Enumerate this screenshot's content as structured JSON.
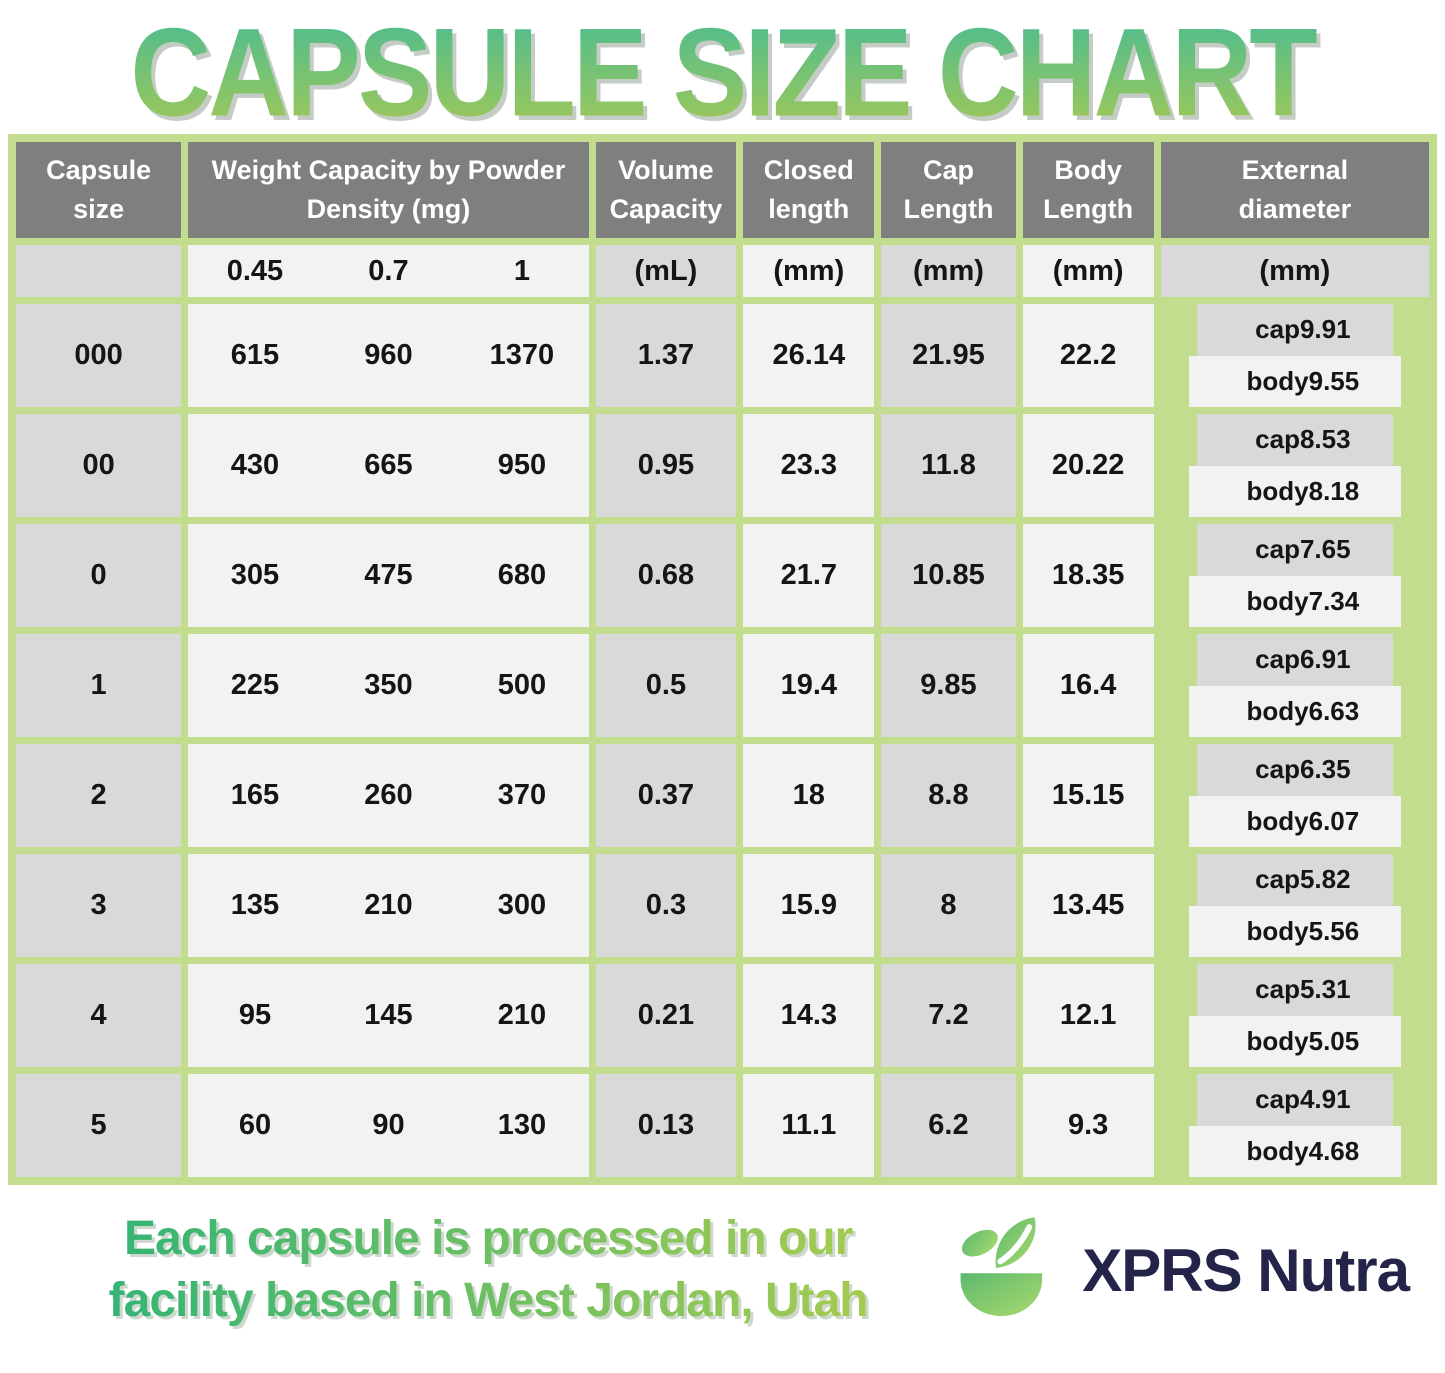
{
  "title": "CAPSULE SIZE CHART",
  "header": {
    "capsule_size": "Capsule size",
    "weight_capacity": "Weight Capacity by Powder Density (mg)",
    "volume_capacity": "Volume Capacity",
    "closed_length": "Closed length",
    "cap_length": "Cap Length",
    "body_length": "Body Length",
    "external_diameter": "External diameter",
    "density_values": [
      "0.45",
      "0.7",
      "1"
    ],
    "units": {
      "volume": "(mL)",
      "closed": "(mm)",
      "cap": "(mm)",
      "body": "(mm)",
      "external": "(mm)"
    },
    "ext_row_labels": {
      "cap": "cap",
      "body": "body"
    }
  },
  "chart_data": {
    "type": "table",
    "title": "CAPSULE SIZE CHART",
    "columns": [
      "Capsule size",
      "Weight Capacity at Powder Density 0.45 (mg)",
      "Weight Capacity at Powder Density 0.7 (mg)",
      "Weight Capacity at Powder Density 1 (mg)",
      "Volume Capacity (mL)",
      "Closed length (mm)",
      "Cap Length (mm)",
      "Body Length (mm)",
      "External diameter cap (mm)",
      "External diameter body (mm)"
    ],
    "rows": [
      [
        "000",
        "615",
        "960",
        "1370",
        "1.37",
        "26.14",
        "21.95",
        "22.2",
        "9.91",
        "9.55"
      ],
      [
        "00",
        "430",
        "665",
        "950",
        "0.95",
        "23.3",
        "11.8",
        "20.22",
        "8.53",
        "8.18"
      ],
      [
        "0",
        "305",
        "475",
        "680",
        "0.68",
        "21.7",
        "10.85",
        "18.35",
        "7.65",
        "7.34"
      ],
      [
        "1",
        "225",
        "350",
        "500",
        "0.5",
        "19.4",
        "9.85",
        "16.4",
        "6.91",
        "6.63"
      ],
      [
        "2",
        "165",
        "260",
        "370",
        "0.37",
        "18",
        "8.8",
        "15.15",
        "6.35",
        "6.07"
      ],
      [
        "3",
        "135",
        "210",
        "300",
        "0.3",
        "15.9",
        "8",
        "13.45",
        "5.82",
        "5.56"
      ],
      [
        "4",
        "95",
        "145",
        "210",
        "0.21",
        "14.3",
        "7.2",
        "12.1",
        "5.31",
        "5.05"
      ],
      [
        "5",
        "60",
        "90",
        "130",
        "0.13",
        "11.1",
        "6.2",
        "9.3",
        "4.91",
        "4.68"
      ]
    ]
  },
  "footer": {
    "tagline_line1": "Each capsule is processed in our",
    "tagline_line2": "facility based in West Jordan, Utah",
    "brand": "XPRS Nutra"
  },
  "colors": {
    "green_border": "#c3dd8e",
    "header_gray": "#7f7f7f",
    "cell_gray": "#d9d9d9",
    "cell_light": "#f2f2f2",
    "title_gradient_top": "#4dbc90",
    "title_gradient_bottom": "#a0c858",
    "tagline_gradient_start": "#2eb377",
    "tagline_gradient_end": "#abcc4f",
    "brand_navy": "#24234a"
  }
}
